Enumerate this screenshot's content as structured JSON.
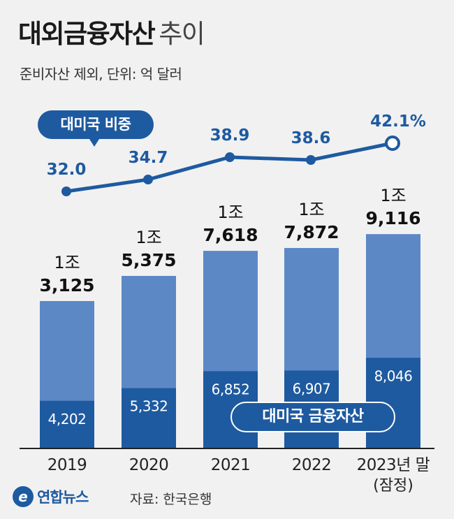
{
  "title": {
    "main": "대외금융자산",
    "sub": "추이"
  },
  "subtitle": "준비자산 제외, 단위: 억 달러",
  "badges": {
    "share": "대미국 비중",
    "us_assets": "대미국 금융자산"
  },
  "source": "자료: 한국은행",
  "logo": {
    "mark": "e",
    "text": "연합뉴스"
  },
  "colors": {
    "light_bar": "#5c88c6",
    "dark_bar": "#1e5aa0",
    "line": "#1e5aa0"
  },
  "chart_data": {
    "type": "bar",
    "categories": [
      "2019",
      "2020",
      "2021",
      "2022",
      "2023년 말"
    ],
    "category_notes": [
      "",
      "",
      "",
      "",
      "(잠정)"
    ],
    "totals": [
      13125,
      15375,
      17618,
      17872,
      19116
    ],
    "total_labels": [
      {
        "top": "1조",
        "bottom": "3,125"
      },
      {
        "top": "1조",
        "bottom": "5,375"
      },
      {
        "top": "1조",
        "bottom": "7,618"
      },
      {
        "top": "1조",
        "bottom": "7,872"
      },
      {
        "top": "1조",
        "bottom": "9,116"
      }
    ],
    "us_values": [
      4202,
      5332,
      6852,
      6907,
      8046
    ],
    "us_labels": [
      "4,202",
      "5,332",
      "6,852",
      "6,907",
      "8,046"
    ],
    "share": {
      "values": [
        32.0,
        34.7,
        38.9,
        38.6,
        42.1
      ],
      "labels": [
        "32.0",
        "34.7",
        "38.9",
        "38.6",
        "42.1%"
      ]
    },
    "ylim": [
      0,
      20000
    ]
  }
}
